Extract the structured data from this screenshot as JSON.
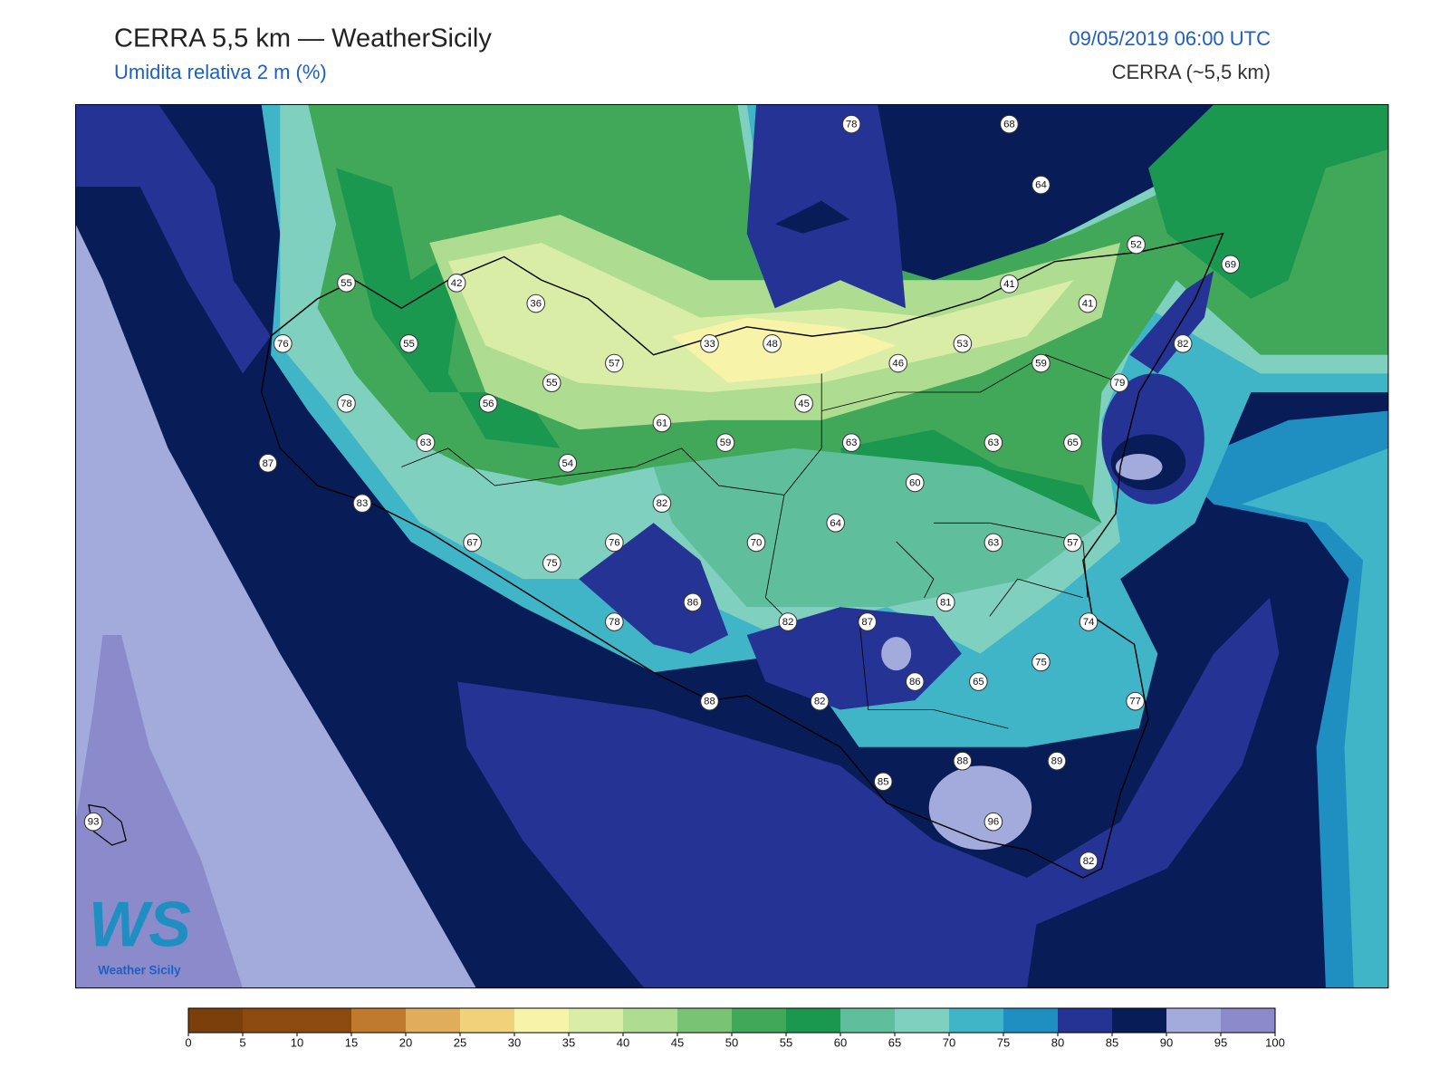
{
  "header": {
    "title": "CERRA 5,5 km — WeatherSicily",
    "subtitle": "Umidita relativa 2 m (%)",
    "datetime": "09/05/2019 06:00 UTC",
    "model": "CERRA (~5,5 km)"
  },
  "logo": {
    "mark": "WS",
    "name": "Weather Sicily"
  },
  "stations": [
    78,
    68,
    64,
    52,
    69,
    55,
    42,
    36,
    41,
    41,
    76,
    55,
    57,
    33,
    48,
    53,
    46,
    59,
    82,
    79,
    78,
    55,
    56,
    45,
    61,
    63,
    59,
    63,
    63,
    65,
    87,
    54,
    60,
    83,
    82,
    64,
    67,
    76,
    70,
    63,
    57,
    75,
    86,
    81,
    78,
    82,
    87,
    74,
    75,
    86,
    65,
    88,
    82,
    77,
    88,
    89,
    85,
    96,
    93,
    82
  ],
  "colorbar": {
    "ticks": [
      0,
      5,
      10,
      15,
      20,
      25,
      30,
      35,
      40,
      45,
      50,
      55,
      60,
      65,
      70,
      75,
      80,
      85,
      90,
      95,
      100
    ],
    "colors": [
      "#7a3f0a",
      "#8c4a0f",
      "#8c4a0f",
      "#c07a2e",
      "#e0ad5b",
      "#f0d27a",
      "#f7f3a8",
      "#d9eda6",
      "#aedc90",
      "#78c474",
      "#41a85a",
      "#1b9850",
      "#5fbf9c",
      "#80d0bf",
      "#40b5c7",
      "#1f8fc2",
      "#253494",
      "#081d58",
      "#a3abdc",
      "#8b8acb"
    ]
  }
}
